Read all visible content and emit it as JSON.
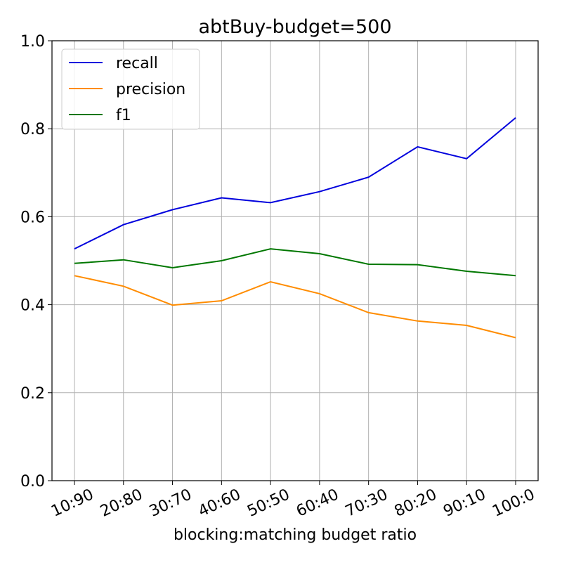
{
  "chart_data": {
    "type": "line",
    "title": "abtBuy-budget=500",
    "xlabel": "blocking:matching  budget ratio",
    "ylabel": "",
    "categories": [
      "10:90",
      "20:80",
      "30:70",
      "40:60",
      "50:50",
      "60:40",
      "70:30",
      "80:20",
      "90:10",
      "100:0"
    ],
    "ylim": [
      0,
      1.0
    ],
    "yticks": [
      "0.0",
      "0.2",
      "0.4",
      "0.6",
      "0.8",
      "1.0"
    ],
    "grid": true,
    "legend_position": "top-left",
    "series": [
      {
        "name": "recall",
        "color": "#0000dd",
        "values": [
          0.527,
          0.582,
          0.616,
          0.643,
          0.632,
          0.657,
          0.69,
          0.759,
          0.732,
          0.825
        ]
      },
      {
        "name": "precision",
        "color": "#ff8c00",
        "values": [
          0.466,
          0.442,
          0.399,
          0.409,
          0.452,
          0.425,
          0.382,
          0.363,
          0.353,
          0.325
        ]
      },
      {
        "name": "f1",
        "color": "#007700",
        "values": [
          0.494,
          0.502,
          0.484,
          0.5,
          0.527,
          0.516,
          0.492,
          0.491,
          0.476,
          0.466
        ]
      }
    ]
  }
}
